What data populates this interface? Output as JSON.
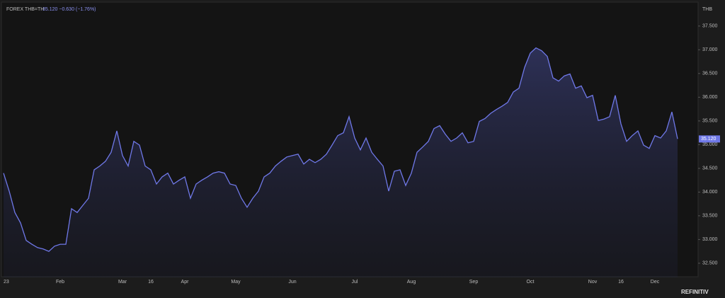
{
  "chart_data": {
    "type": "line",
    "title": "FOREX THB=TH",
    "subtitle": "35.120 −0.630 (−1.76%)",
    "y_axis_label": "THB",
    "brand": "REFINITIV",
    "last_value_label": "35.120",
    "color": "#6f78e8",
    "categories": [
      "23",
      null,
      null,
      null,
      null,
      null,
      null,
      null,
      null,
      null,
      "Feb",
      null,
      null,
      null,
      null,
      null,
      null,
      null,
      null,
      null,
      null,
      "Mar",
      null,
      null,
      null,
      null,
      "16",
      null,
      null,
      null,
      null,
      null,
      "Apr",
      null,
      null,
      null,
      null,
      null,
      null,
      null,
      null,
      "May",
      null,
      null,
      null,
      null,
      null,
      null,
      null,
      null,
      null,
      "Jun",
      null,
      null,
      null,
      null,
      null,
      null,
      null,
      null,
      null,
      null,
      "Jul",
      null,
      null,
      null,
      null,
      null,
      null,
      null,
      null,
      null,
      "Aug",
      null,
      null,
      null,
      null,
      null,
      null,
      null,
      null,
      null,
      null,
      "Sep",
      null,
      null,
      null,
      null,
      null,
      null,
      null,
      null,
      null,
      "Oct",
      null,
      null,
      null,
      null,
      null,
      null,
      null,
      null,
      null,
      null,
      "Nov",
      null,
      null,
      null,
      null,
      "16",
      null,
      null,
      null,
      null,
      null,
      "Dec",
      null,
      null,
      null,
      null
    ],
    "values": [
      34.4,
      34.02,
      33.57,
      33.35,
      32.98,
      32.9,
      32.83,
      32.8,
      32.75,
      32.86,
      32.9,
      32.9,
      33.65,
      33.57,
      33.72,
      33.87,
      34.47,
      34.55,
      34.65,
      34.84,
      35.29,
      34.77,
      34.55,
      35.07,
      34.99,
      34.55,
      34.47,
      34.17,
      34.32,
      34.4,
      34.17,
      34.25,
      34.32,
      33.87,
      34.17,
      34.25,
      34.32,
      34.4,
      34.43,
      34.4,
      34.17,
      34.14,
      33.87,
      33.68,
      33.87,
      34.02,
      34.32,
      34.4,
      34.55,
      34.65,
      34.74,
      34.77,
      34.8,
      34.59,
      34.69,
      34.62,
      34.69,
      34.8,
      34.99,
      35.19,
      35.25,
      35.59,
      35.14,
      34.89,
      35.14,
      34.84,
      34.69,
      34.55,
      34.02,
      34.44,
      34.47,
      34.14,
      34.4,
      34.84,
      34.95,
      35.07,
      35.34,
      35.4,
      35.22,
      35.07,
      35.14,
      35.25,
      35.04,
      35.07,
      35.49,
      35.55,
      35.66,
      35.74,
      35.81,
      35.89,
      36.11,
      36.19,
      36.63,
      36.93,
      37.04,
      36.98,
      36.86,
      36.41,
      36.34,
      36.45,
      36.49,
      36.19,
      36.24,
      35.99,
      36.04,
      35.51,
      35.54,
      35.59,
      36.04,
      35.44,
      35.07,
      35.19,
      35.29,
      34.99,
      34.92,
      35.19,
      35.14,
      35.29,
      35.69,
      35.12
    ],
    "ylim": [
      32.2,
      37.93
    ],
    "yticks": [
      {
        "value": 32.5,
        "label": "32.500"
      },
      {
        "value": 33,
        "label": "33.000"
      },
      {
        "value": 33.5,
        "label": "33.500"
      },
      {
        "value": 34,
        "label": "34.000"
      },
      {
        "value": 34.5,
        "label": "34.500"
      },
      {
        "value": 35,
        "label": "35.000"
      },
      {
        "value": 35.5,
        "label": "35.500"
      },
      {
        "value": 36,
        "label": "36.000"
      },
      {
        "value": 36.5,
        "label": "36.500"
      },
      {
        "value": 37,
        "label": "37.000"
      },
      {
        "value": 37.5,
        "label": "37.500"
      }
    ]
  }
}
